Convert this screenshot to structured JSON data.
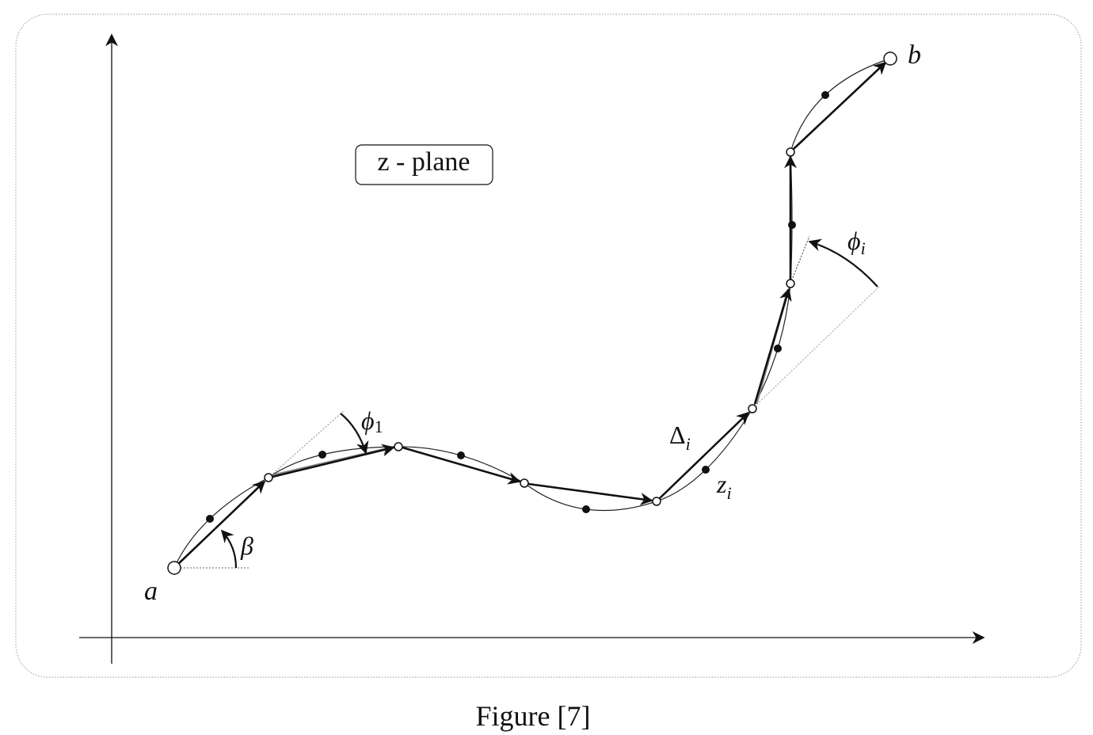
{
  "diagram": {
    "plane_label": "z - plane",
    "start_label": "a",
    "end_label": "b",
    "angle_beta": "β",
    "angle_phi1": "ϕ",
    "angle_phi1_sub": "1",
    "angle_phii": "ϕ",
    "angle_phii_sub": "i",
    "delta_label": "Δ",
    "delta_sub": "i",
    "z_label": "z",
    "z_sub": "i"
  },
  "caption": "Figure [7]",
  "colors": {
    "ink": "#111111",
    "guide": "#888888",
    "frame": "#999999"
  }
}
